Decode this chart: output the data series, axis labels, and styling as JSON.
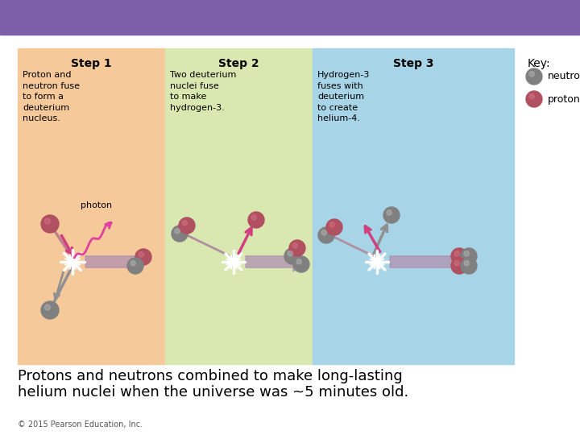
{
  "title_bar_color": "#7B5EA7",
  "bg_color": "#ffffff",
  "step1_bg": "#F5C99A",
  "step2_bg": "#D9E8B0",
  "step3_bg": "#A8D4E8",
  "step1_title": "Step 1",
  "step2_title": "Step 2",
  "step3_title": "Step 3",
  "step1_text": "Proton and\nneutron fuse\nto form a\ndeuterium\nnucleus.",
  "step2_text": "Two deuterium\nnuclei fuse\nto make\nhydrogen-3.",
  "step3_text": "Hydrogen-3\nfuses with\ndeuterium\nto create\nhelium-4.",
  "caption_line1": "Protons and neutrons combined to make long-lasting",
  "caption_line2": "helium nuclei when the universe was ~5 minutes old.",
  "copyright": "© 2015 Pearson Education, Inc.",
  "neutron_color": "#808080",
  "neutron_highlight": "#b0b0b0",
  "proton_color": "#B05060",
  "proton_highlight": "#d07080",
  "key_label": "Key:",
  "neutron_label": "neutron",
  "proton_label": "proton",
  "photon_label": "photon",
  "arrow_color": "#B090B0",
  "photon_line_color": "#E040A0",
  "photon_arrow_color": "#E040A0",
  "dark_arrow_color": "#909090",
  "pink_arrow_color": "#D04080"
}
